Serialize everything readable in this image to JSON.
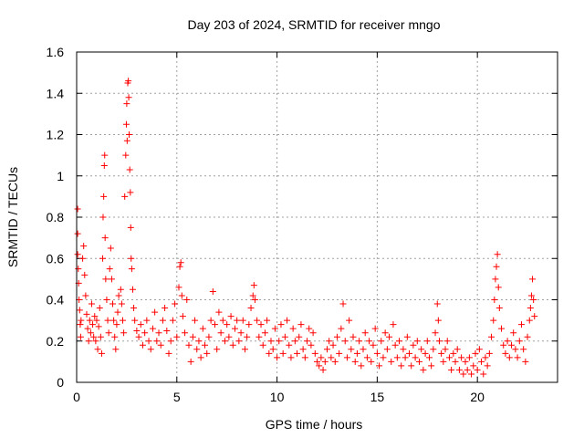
{
  "chart_data": {
    "type": "scatter",
    "title": "Day 203 of 2024, SRMTID for receiver mngo",
    "xlabel": "GPS time / hours",
    "ylabel": "SRMTID / TECUs",
    "xlim": [
      0,
      24
    ],
    "ylim": [
      0,
      1.6
    ],
    "xticks": [
      0,
      5,
      10,
      15,
      20
    ],
    "xtick_labels": [
      "0",
      "5",
      "10",
      "15",
      "20"
    ],
    "yticks": [
      0,
      0.2,
      0.4,
      0.6,
      0.8,
      1,
      1.2,
      1.4,
      1.6
    ],
    "ytick_labels": [
      "0",
      "0.2",
      "0.4",
      "0.6",
      "0.8",
      "1",
      "1.2",
      "1.4",
      "1.6"
    ],
    "grid": true,
    "marker": "+",
    "series": [
      {
        "name": "SRMTID",
        "color": "#ff0000",
        "points": [
          [
            0.05,
            0.84
          ],
          [
            0.05,
            0.72
          ],
          [
            0.05,
            0.62
          ],
          [
            0.08,
            0.55
          ],
          [
            0.1,
            0.48
          ],
          [
            0.12,
            0.4
          ],
          [
            0.15,
            0.35
          ],
          [
            0.18,
            0.28
          ],
          [
            0.2,
            0.22
          ],
          [
            0.22,
            0.3
          ],
          [
            0.3,
            0.6
          ],
          [
            0.35,
            0.66
          ],
          [
            0.4,
            0.52
          ],
          [
            0.45,
            0.42
          ],
          [
            0.5,
            0.33
          ],
          [
            0.55,
            0.26
          ],
          [
            0.6,
            0.2
          ],
          [
            0.65,
            0.3
          ],
          [
            0.7,
            0.24
          ],
          [
            0.75,
            0.38
          ],
          [
            0.8,
            0.28
          ],
          [
            0.85,
            0.22
          ],
          [
            0.9,
            0.32
          ],
          [
            0.95,
            0.2
          ],
          [
            1.0,
            0.3
          ],
          [
            1.05,
            0.16
          ],
          [
            1.1,
            0.27
          ],
          [
            1.15,
            0.36
          ],
          [
            1.2,
            0.22
          ],
          [
            1.25,
            0.14
          ],
          [
            1.3,
            0.6
          ],
          [
            1.32,
            0.8
          ],
          [
            1.35,
            0.9
          ],
          [
            1.38,
            1.05
          ],
          [
            1.4,
            1.1
          ],
          [
            1.42,
            0.7
          ],
          [
            1.45,
            0.5
          ],
          [
            1.5,
            0.4
          ],
          [
            1.55,
            0.3
          ],
          [
            1.6,
            0.24
          ],
          [
            1.65,
            0.55
          ],
          [
            1.7,
            0.65
          ],
          [
            1.75,
            0.5
          ],
          [
            1.8,
            0.38
          ],
          [
            1.85,
            0.3
          ],
          [
            1.9,
            0.22
          ],
          [
            1.95,
            0.16
          ],
          [
            2.0,
            0.28
          ],
          [
            2.05,
            0.34
          ],
          [
            2.1,
            0.42
          ],
          [
            2.2,
            0.45
          ],
          [
            2.25,
            0.38
          ],
          [
            2.3,
            0.3
          ],
          [
            2.35,
            0.24
          ],
          [
            2.4,
            0.9
          ],
          [
            2.45,
            1.1
          ],
          [
            2.48,
            1.25
          ],
          [
            2.5,
            1.35
          ],
          [
            2.52,
            1.17
          ],
          [
            2.55,
            1.45
          ],
          [
            2.58,
            1.46
          ],
          [
            2.6,
            1.38
          ],
          [
            2.62,
            1.2
          ],
          [
            2.65,
            1.03
          ],
          [
            2.68,
            0.92
          ],
          [
            2.7,
            0.75
          ],
          [
            2.72,
            0.6
          ],
          [
            2.75,
            0.55
          ],
          [
            2.8,
            0.45
          ],
          [
            2.85,
            0.36
          ],
          [
            2.9,
            0.3
          ],
          [
            3.0,
            0.25
          ],
          [
            3.1,
            0.22
          ],
          [
            3.2,
            0.28
          ],
          [
            3.3,
            0.18
          ],
          [
            3.4,
            0.24
          ],
          [
            3.5,
            0.3
          ],
          [
            3.6,
            0.2
          ],
          [
            3.7,
            0.16
          ],
          [
            3.8,
            0.26
          ],
          [
            3.9,
            0.34
          ],
          [
            4.0,
            0.2
          ],
          [
            4.1,
            0.24
          ],
          [
            4.2,
            0.18
          ],
          [
            4.3,
            0.3
          ],
          [
            4.4,
            0.36
          ],
          [
            4.5,
            0.25
          ],
          [
            4.6,
            0.14
          ],
          [
            4.7,
            0.2
          ],
          [
            4.8,
            0.3
          ],
          [
            4.9,
            0.38
          ],
          [
            5.0,
            0.22
          ],
          [
            5.1,
            0.46
          ],
          [
            5.15,
            0.56
          ],
          [
            5.2,
            0.58
          ],
          [
            5.25,
            0.42
          ],
          [
            5.3,
            0.32
          ],
          [
            5.4,
            0.24
          ],
          [
            5.5,
            0.4
          ],
          [
            5.6,
            0.18
          ],
          [
            5.7,
            0.1
          ],
          [
            5.8,
            0.22
          ],
          [
            5.9,
            0.3
          ],
          [
            6.0,
            0.16
          ],
          [
            6.1,
            0.2
          ],
          [
            6.2,
            0.12
          ],
          [
            6.3,
            0.26
          ],
          [
            6.4,
            0.18
          ],
          [
            6.5,
            0.14
          ],
          [
            6.6,
            0.22
          ],
          [
            6.7,
            0.3
          ],
          [
            6.8,
            0.44
          ],
          [
            6.9,
            0.28
          ],
          [
            7.0,
            0.16
          ],
          [
            7.1,
            0.34
          ],
          [
            7.2,
            0.24
          ],
          [
            7.3,
            0.3
          ],
          [
            7.4,
            0.2
          ],
          [
            7.5,
            0.28
          ],
          [
            7.6,
            0.22
          ],
          [
            7.7,
            0.32
          ],
          [
            7.8,
            0.18
          ],
          [
            7.9,
            0.26
          ],
          [
            8.0,
            0.3
          ],
          [
            8.1,
            0.2
          ],
          [
            8.2,
            0.24
          ],
          [
            8.3,
            0.3
          ],
          [
            8.4,
            0.16
          ],
          [
            8.5,
            0.22
          ],
          [
            8.6,
            0.28
          ],
          [
            8.7,
            0.36
          ],
          [
            8.8,
            0.42
          ],
          [
            8.85,
            0.47
          ],
          [
            8.9,
            0.4
          ],
          [
            9.0,
            0.3
          ],
          [
            9.1,
            0.22
          ],
          [
            9.2,
            0.28
          ],
          [
            9.3,
            0.18
          ],
          [
            9.4,
            0.24
          ],
          [
            9.5,
            0.3
          ],
          [
            9.6,
            0.14
          ],
          [
            9.7,
            0.2
          ],
          [
            9.8,
            0.16
          ],
          [
            9.9,
            0.26
          ],
          [
            10.0,
            0.12
          ],
          [
            10.1,
            0.2
          ],
          [
            10.2,
            0.28
          ],
          [
            10.3,
            0.14
          ],
          [
            10.4,
            0.22
          ],
          [
            10.5,
            0.3
          ],
          [
            10.6,
            0.18
          ],
          [
            10.7,
            0.12
          ],
          [
            10.8,
            0.26
          ],
          [
            10.9,
            0.2
          ],
          [
            11.0,
            0.14
          ],
          [
            11.1,
            0.22
          ],
          [
            11.2,
            0.28
          ],
          [
            11.3,
            0.16
          ],
          [
            11.4,
            0.12
          ],
          [
            11.5,
            0.2
          ],
          [
            11.6,
            0.26
          ],
          [
            11.7,
            0.18
          ],
          [
            11.8,
            0.24
          ],
          [
            11.9,
            0.14
          ],
          [
            12.0,
            0.1
          ],
          [
            12.1,
            0.08
          ],
          [
            12.2,
            0.12
          ],
          [
            12.3,
            0.06
          ],
          [
            12.4,
            0.1
          ],
          [
            12.5,
            0.16
          ],
          [
            12.6,
            0.2
          ],
          [
            12.7,
            0.12
          ],
          [
            12.8,
            0.18
          ],
          [
            12.9,
            0.1
          ],
          [
            13.0,
            0.22
          ],
          [
            13.1,
            0.14
          ],
          [
            13.2,
            0.26
          ],
          [
            13.3,
            0.38
          ],
          [
            13.4,
            0.2
          ],
          [
            13.5,
            0.12
          ],
          [
            13.6,
            0.3
          ],
          [
            13.7,
            0.16
          ],
          [
            13.8,
            0.22
          ],
          [
            13.9,
            0.1
          ],
          [
            14.0,
            0.14
          ],
          [
            14.1,
            0.2
          ],
          [
            14.2,
            0.08
          ],
          [
            14.3,
            0.16
          ],
          [
            14.4,
            0.24
          ],
          [
            14.5,
            0.12
          ],
          [
            14.6,
            0.2
          ],
          [
            14.7,
            0.1
          ],
          [
            14.8,
            0.18
          ],
          [
            14.9,
            0.26
          ],
          [
            15.0,
            0.14
          ],
          [
            15.1,
            0.08
          ],
          [
            15.2,
            0.2
          ],
          [
            15.3,
            0.12
          ],
          [
            15.4,
            0.24
          ],
          [
            15.5,
            0.16
          ],
          [
            15.6,
            0.22
          ],
          [
            15.7,
            0.1
          ],
          [
            15.8,
            0.28
          ],
          [
            15.9,
            0.18
          ],
          [
            16.0,
            0.12
          ],
          [
            16.1,
            0.2
          ],
          [
            16.2,
            0.08
          ],
          [
            16.3,
            0.16
          ],
          [
            16.4,
            0.12
          ],
          [
            16.5,
            0.22
          ],
          [
            16.6,
            0.14
          ],
          [
            16.7,
            0.08
          ],
          [
            16.8,
            0.18
          ],
          [
            16.9,
            0.12
          ],
          [
            17.0,
            0.2
          ],
          [
            17.1,
            0.1
          ],
          [
            17.2,
            0.16
          ],
          [
            17.3,
            0.06
          ],
          [
            17.4,
            0.14
          ],
          [
            17.5,
            0.2
          ],
          [
            17.6,
            0.12
          ],
          [
            17.7,
            0.08
          ],
          [
            17.8,
            0.16
          ],
          [
            17.9,
            0.24
          ],
          [
            18.0,
            0.38
          ],
          [
            18.05,
            0.3
          ],
          [
            18.1,
            0.2
          ],
          [
            18.2,
            0.14
          ],
          [
            18.3,
            0.1
          ],
          [
            18.4,
            0.16
          ],
          [
            18.5,
            0.2
          ],
          [
            18.6,
            0.12
          ],
          [
            18.7,
            0.06
          ],
          [
            18.8,
            0.14
          ],
          [
            18.9,
            0.1
          ],
          [
            19.0,
            0.16
          ],
          [
            19.1,
            0.06
          ],
          [
            19.2,
            0.12
          ],
          [
            19.3,
            0.04
          ],
          [
            19.4,
            0.1
          ],
          [
            19.5,
            0.06
          ],
          [
            19.6,
            0.12
          ],
          [
            19.7,
            0.04
          ],
          [
            19.8,
            0.08
          ],
          [
            19.9,
            0.14
          ],
          [
            20.0,
            0.06
          ],
          [
            20.1,
            0.16
          ],
          [
            20.2,
            0.1
          ],
          [
            20.3,
            0.04
          ],
          [
            20.4,
            0.12
          ],
          [
            20.5,
            0.08
          ],
          [
            20.6,
            0.14
          ],
          [
            20.7,
            0.22
          ],
          [
            20.8,
            0.3
          ],
          [
            20.85,
            0.4
          ],
          [
            20.9,
            0.5
          ],
          [
            20.95,
            0.56
          ],
          [
            21.0,
            0.62
          ],
          [
            21.05,
            0.46
          ],
          [
            21.1,
            0.36
          ],
          [
            21.2,
            0.26
          ],
          [
            21.3,
            0.18
          ],
          [
            21.4,
            0.14
          ],
          [
            21.5,
            0.2
          ],
          [
            21.6,
            0.12
          ],
          [
            21.7,
            0.18
          ],
          [
            21.8,
            0.24
          ],
          [
            21.9,
            0.16
          ],
          [
            22.0,
            0.12
          ],
          [
            22.1,
            0.2
          ],
          [
            22.2,
            0.28
          ],
          [
            22.3,
            0.16
          ],
          [
            22.4,
            0.1
          ],
          [
            22.5,
            0.22
          ],
          [
            22.6,
            0.3
          ],
          [
            22.65,
            0.36
          ],
          [
            22.7,
            0.42
          ],
          [
            22.75,
            0.5
          ],
          [
            22.8,
            0.4
          ],
          [
            22.85,
            0.32
          ]
        ]
      }
    ]
  }
}
